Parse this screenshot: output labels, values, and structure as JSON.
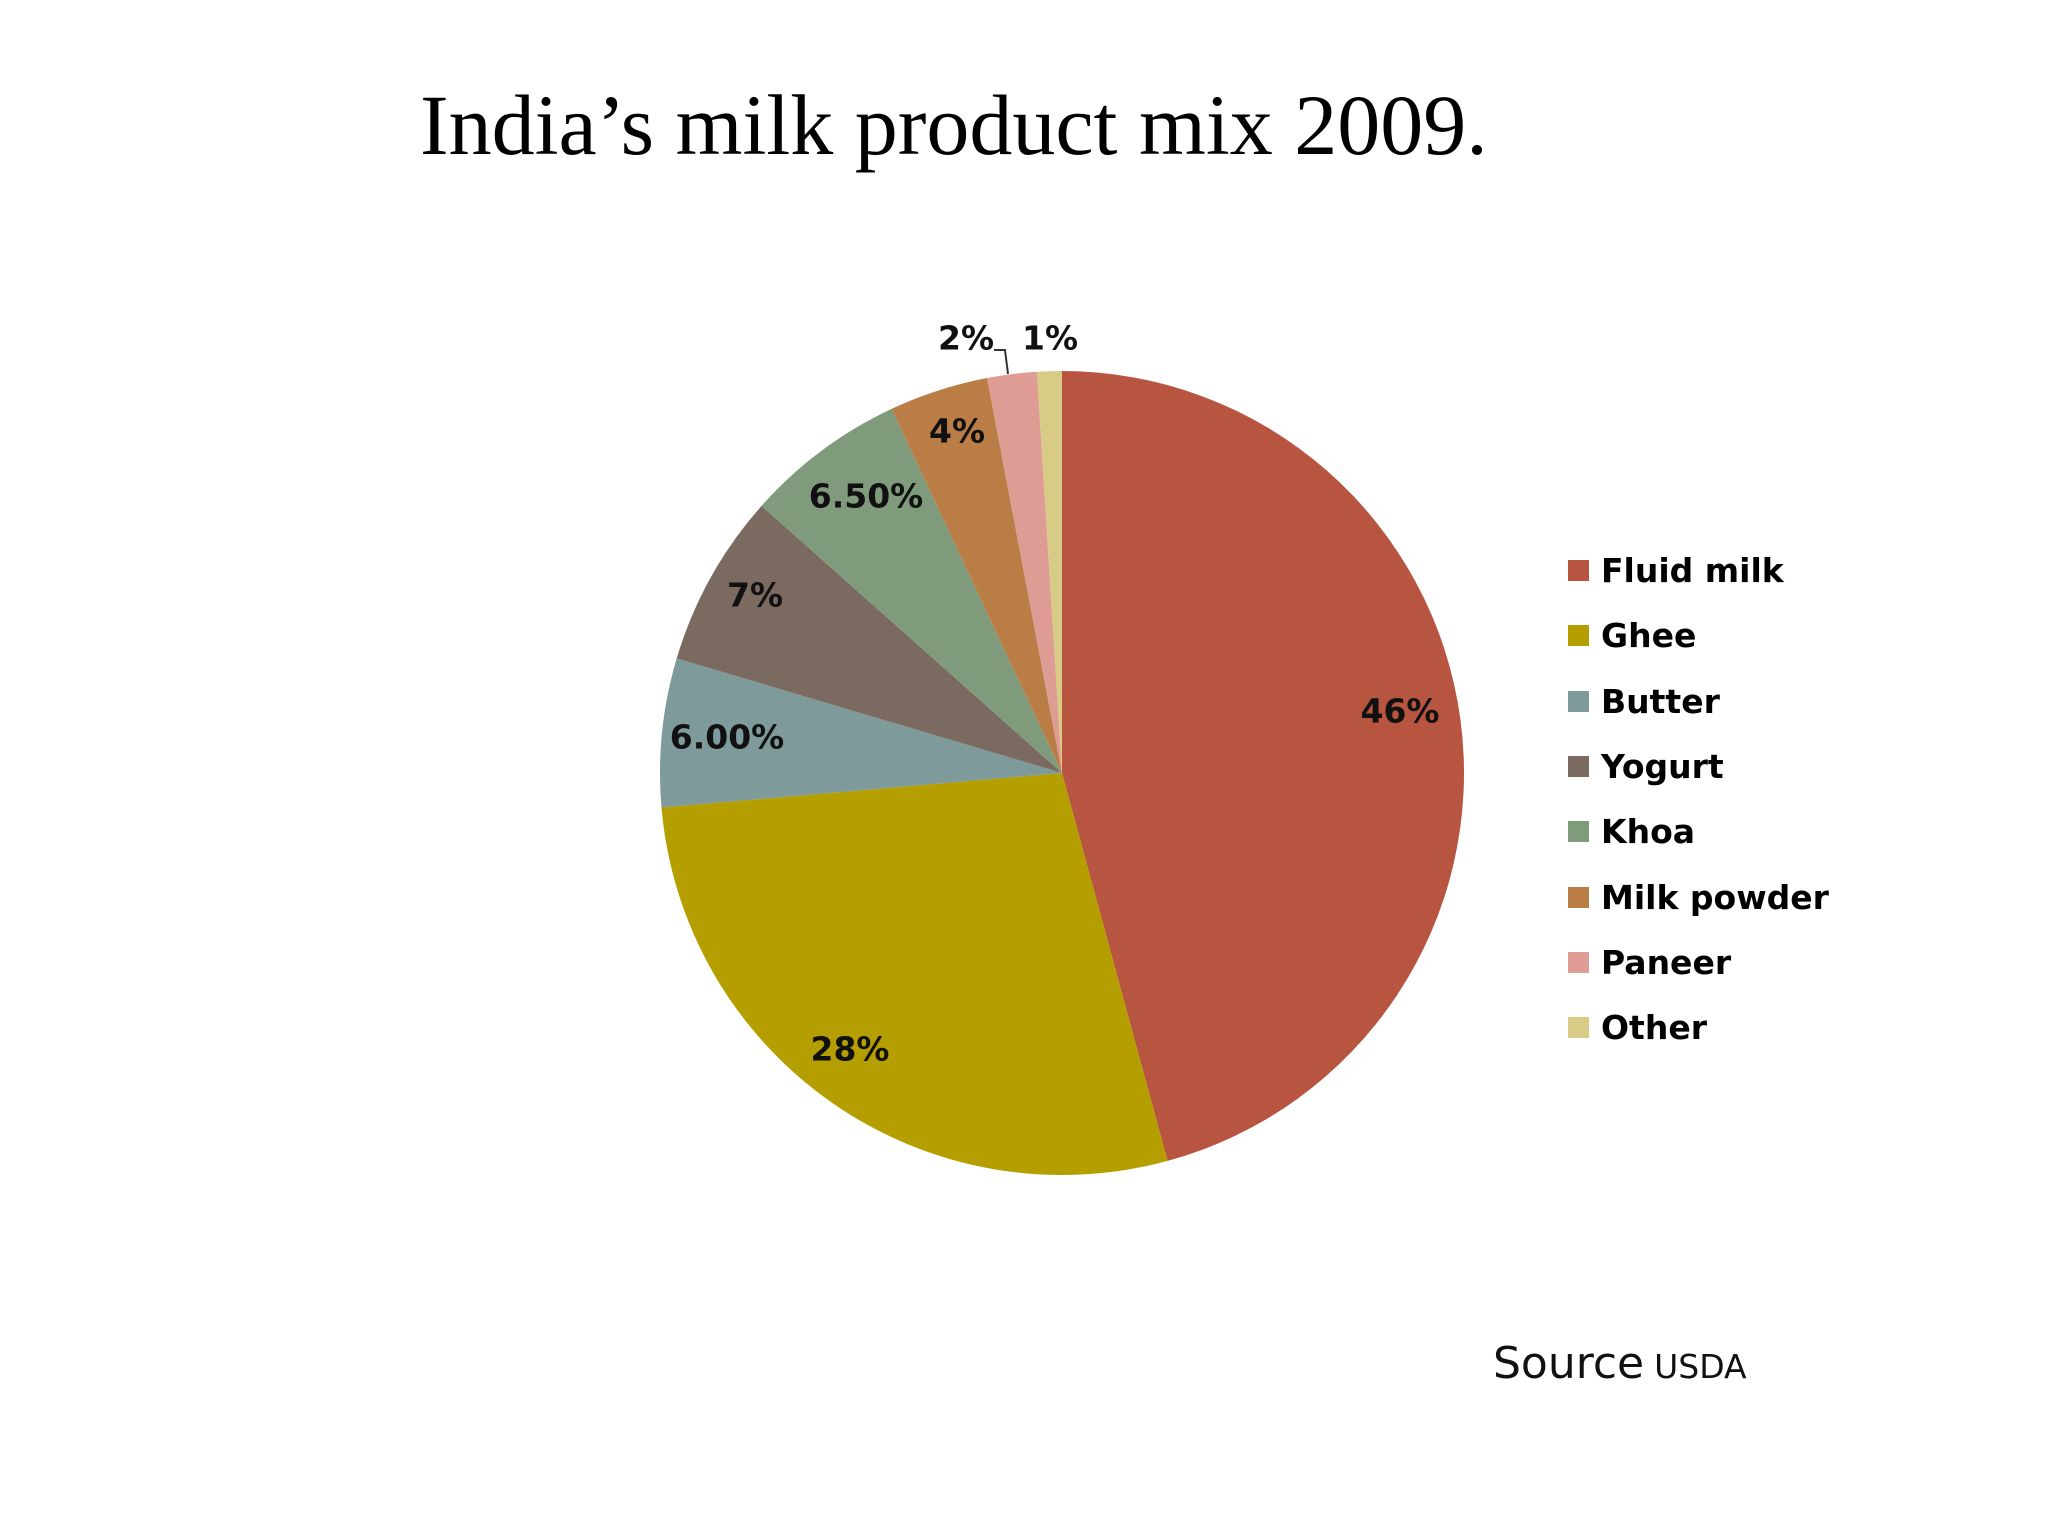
{
  "slide": {
    "title": "India’s milk product mix 2009.",
    "source_word": "Source",
    "source_org": "USDA"
  },
  "chart_data": {
    "type": "pie",
    "title": "India’s milk product mix 2009.",
    "legend_position": "right",
    "start": "12 o'clock, clockwise",
    "slices": [
      {
        "name": "Fluid milk",
        "value": 46,
        "label": "46%",
        "color": "#B85541"
      },
      {
        "name": "Ghee",
        "value": 28,
        "label": "28%",
        "color": "#B59E00"
      },
      {
        "name": "Butter",
        "value": 6,
        "label": "6.00%",
        "color": "#7E9A9B"
      },
      {
        "name": "Yogurt",
        "value": 7,
        "label": "7%",
        "color": "#7B6A60"
      },
      {
        "name": "Khoa",
        "value": 6.5,
        "label": "6.50%",
        "color": "#7F9B7C"
      },
      {
        "name": "Milk powder",
        "value": 4,
        "label": "4%",
        "color": "#BA7D45"
      },
      {
        "name": "Paneer",
        "value": 2,
        "label": "2%",
        "color": "#DE9C95"
      },
      {
        "name": "Other",
        "value": 1,
        "label": "1%",
        "color": "#D8CB85"
      }
    ]
  }
}
